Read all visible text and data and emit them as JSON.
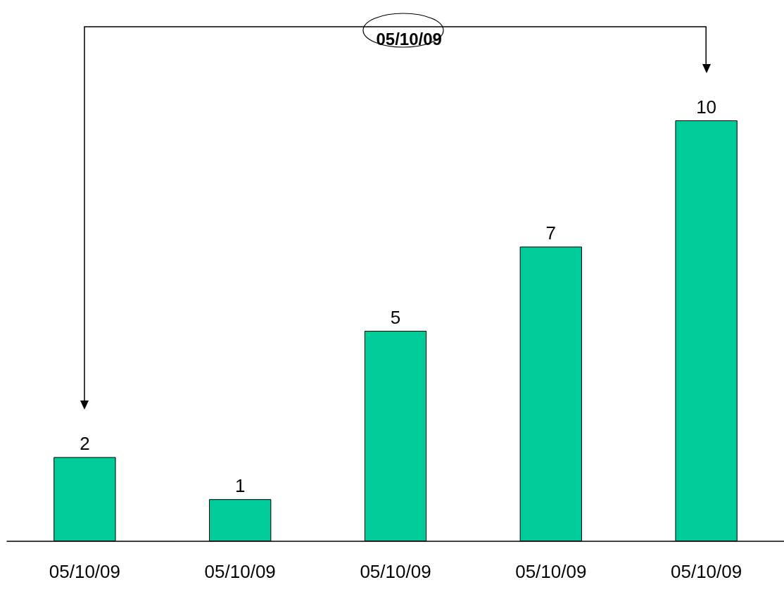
{
  "chart_data": {
    "type": "bar",
    "categories": [
      "05/10/09",
      "05/10/09",
      "05/10/09",
      "05/10/09",
      "05/10/09"
    ],
    "values": [
      2,
      1,
      5,
      7,
      10
    ],
    "color": "#00cc99",
    "data_labels": true,
    "annotations": [
      "05/10/09"
    ]
  }
}
